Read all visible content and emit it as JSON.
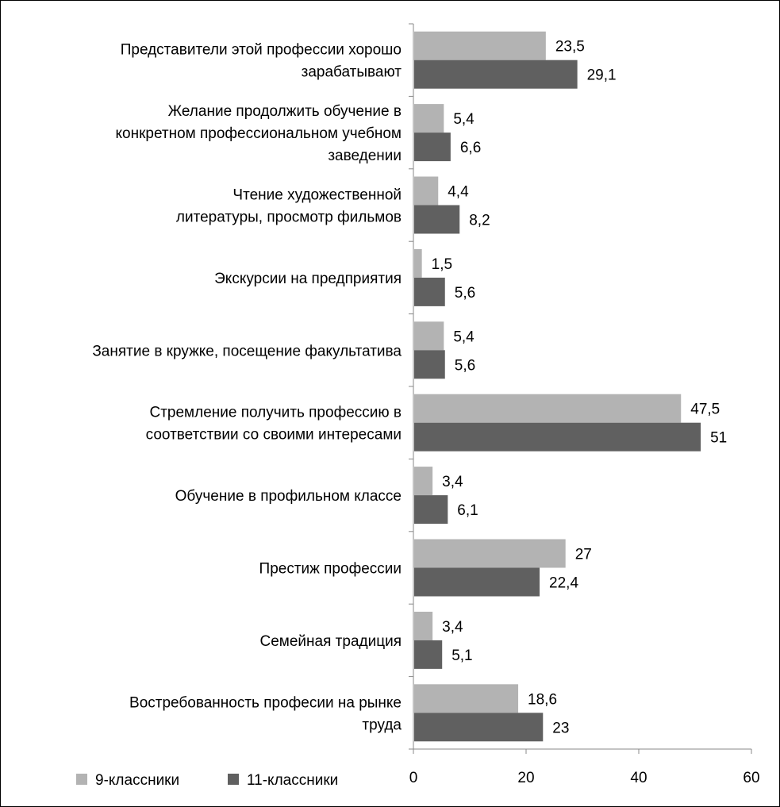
{
  "chart_data": {
    "type": "bar",
    "orientation": "horizontal",
    "categories": [
      [
        "Представители этой профессии хорошо",
        "зарабатывают"
      ],
      [
        "Желание продолжить обучение в",
        "конкретном профессиональном  учебном",
        "заведении"
      ],
      [
        "Чтение художественной",
        "литературы, просмотр фильмов"
      ],
      [
        "Экскурсии на предприятия"
      ],
      [
        "Занятие в кружке, посещение факультатива"
      ],
      [
        "Стремление получить профессию в",
        "соответствии со своими интересами"
      ],
      [
        "Обучение в профильном классе"
      ],
      [
        "Престиж профессии"
      ],
      [
        "Семейная традиция"
      ],
      [
        "Востребованность профеcии на рынке",
        "труда"
      ]
    ],
    "series": [
      {
        "name": "9-классники",
        "color": "#b3b3b3",
        "values": [
          23.5,
          5.4,
          4.4,
          1.5,
          5.4,
          47.5,
          3.4,
          27,
          3.4,
          18.6
        ],
        "labels": [
          "23,5",
          "5,4",
          "4,4",
          "1,5",
          "5,4",
          "47,5",
          "3,4",
          "27",
          "3,4",
          "18,6"
        ]
      },
      {
        "name": "11-классники",
        "color": "#606060",
        "values": [
          29.1,
          6.6,
          8.2,
          5.6,
          5.6,
          51,
          6.1,
          22.4,
          5.1,
          23
        ],
        "labels": [
          "29,1",
          "6,6",
          "8,2",
          "5,6",
          "5,6",
          "51",
          "6,1",
          "22,4",
          "5,1",
          "23"
        ]
      }
    ],
    "xlim": [
      0,
      60
    ],
    "xticks": [
      0,
      20,
      40,
      60
    ],
    "xtick_labels": [
      "0",
      "20",
      "40",
      "60"
    ],
    "grid": false,
    "legend_position": "bottom-left"
  }
}
